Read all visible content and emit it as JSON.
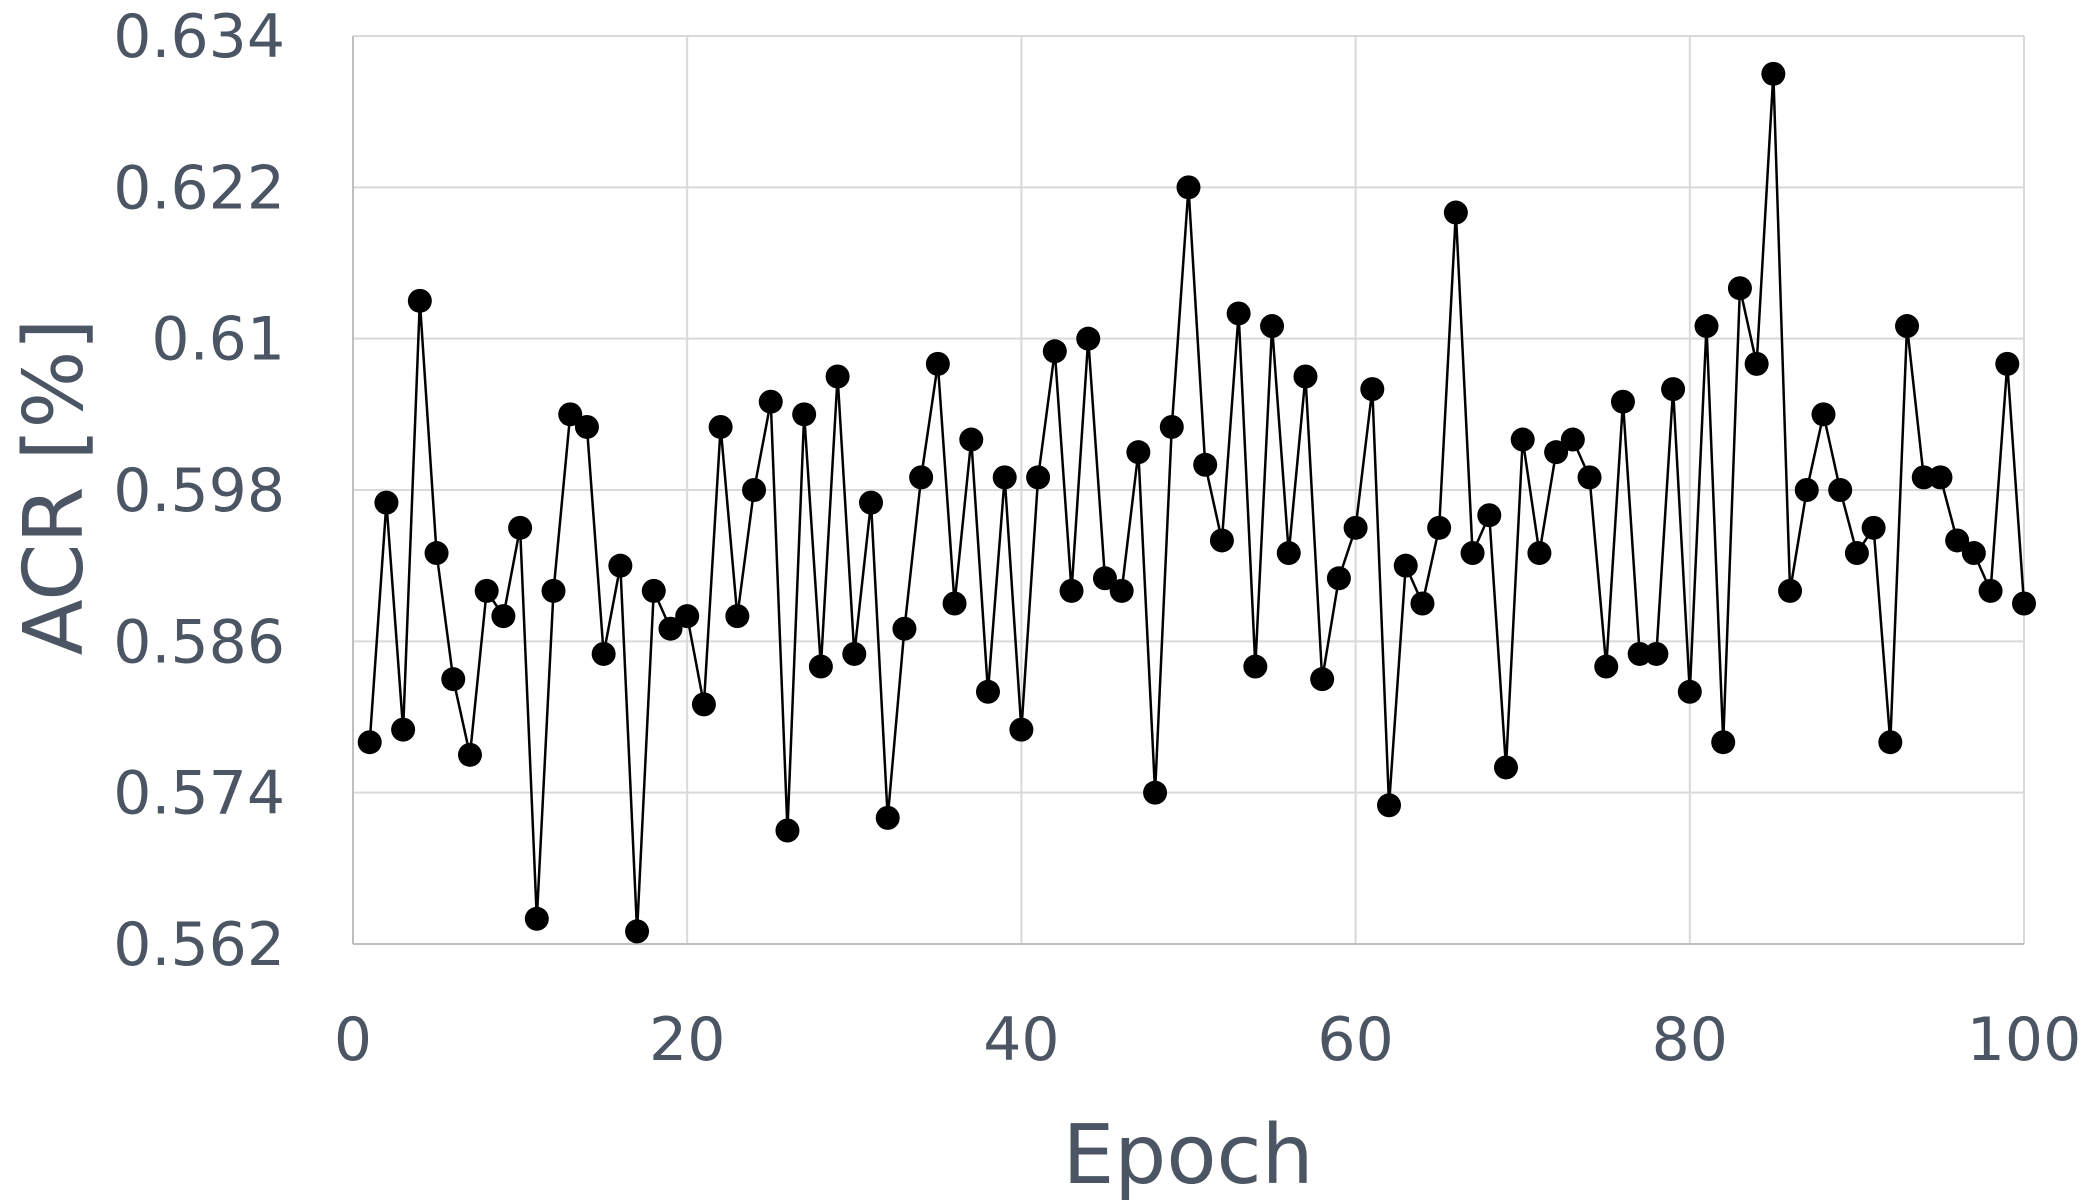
{
  "chart_data": {
    "type": "line",
    "xlabel": "Epoch",
    "ylabel": "ACR [%]",
    "xlim": [
      0,
      100
    ],
    "xticks": [
      0,
      20,
      40,
      60,
      80,
      100
    ],
    "ylim": [
      0.562,
      0.634
    ],
    "yticks": [
      0.562,
      0.574,
      0.586,
      0.598,
      0.61,
      0.622,
      0.634
    ],
    "grid": true,
    "series": [
      {
        "color": "#000000",
        "x": [
          1,
          2,
          3,
          4,
          5,
          6,
          7,
          8,
          9,
          10,
          11,
          12,
          13,
          14,
          15,
          16,
          17,
          18,
          19,
          20,
          21,
          22,
          23,
          24,
          25,
          26,
          27,
          28,
          29,
          30,
          31,
          32,
          33,
          34,
          35,
          36,
          37,
          38,
          39,
          40,
          41,
          42,
          43,
          44,
          45,
          46,
          47,
          48,
          49,
          50,
          51,
          52,
          53,
          54,
          55,
          56,
          57,
          58,
          59,
          60,
          61,
          62,
          63,
          64,
          65,
          66,
          67,
          68,
          69,
          70,
          71,
          72,
          73,
          74,
          75,
          76,
          77,
          78,
          79,
          80,
          81,
          82,
          83,
          84,
          85,
          86,
          87,
          88,
          89,
          90,
          91,
          92,
          93,
          94,
          95,
          96,
          97,
          98,
          99,
          100
        ],
        "values": [
          0.578,
          0.597,
          0.579,
          0.613,
          0.593,
          0.583,
          0.577,
          0.59,
          0.588,
          0.595,
          0.564,
          0.59,
          0.604,
          0.603,
          0.585,
          0.592,
          0.563,
          0.59,
          0.587,
          0.588,
          0.581,
          0.603,
          0.588,
          0.598,
          0.605,
          0.571,
          0.604,
          0.584,
          0.607,
          0.585,
          0.597,
          0.572,
          0.587,
          0.599,
          0.608,
          0.589,
          0.602,
          0.582,
          0.599,
          0.579,
          0.599,
          0.609,
          0.59,
          0.61,
          0.591,
          0.59,
          0.601,
          0.574,
          0.603,
          0.622,
          0.6,
          0.594,
          0.612,
          0.584,
          0.611,
          0.593,
          0.607,
          0.583,
          0.591,
          0.595,
          0.606,
          0.573,
          0.592,
          0.589,
          0.595,
          0.62,
          0.593,
          0.596,
          0.576,
          0.602,
          0.593,
          0.601,
          0.602,
          0.599,
          0.584,
          0.605,
          0.585,
          0.585,
          0.606,
          0.582,
          0.611,
          0.578,
          0.614,
          0.608,
          0.631,
          0.59,
          0.598,
          0.604,
          0.598,
          0.593,
          0.595,
          0.578,
          0.611,
          0.599,
          0.599,
          0.594,
          0.593,
          0.59,
          0.608,
          0.589
        ]
      }
    ]
  }
}
